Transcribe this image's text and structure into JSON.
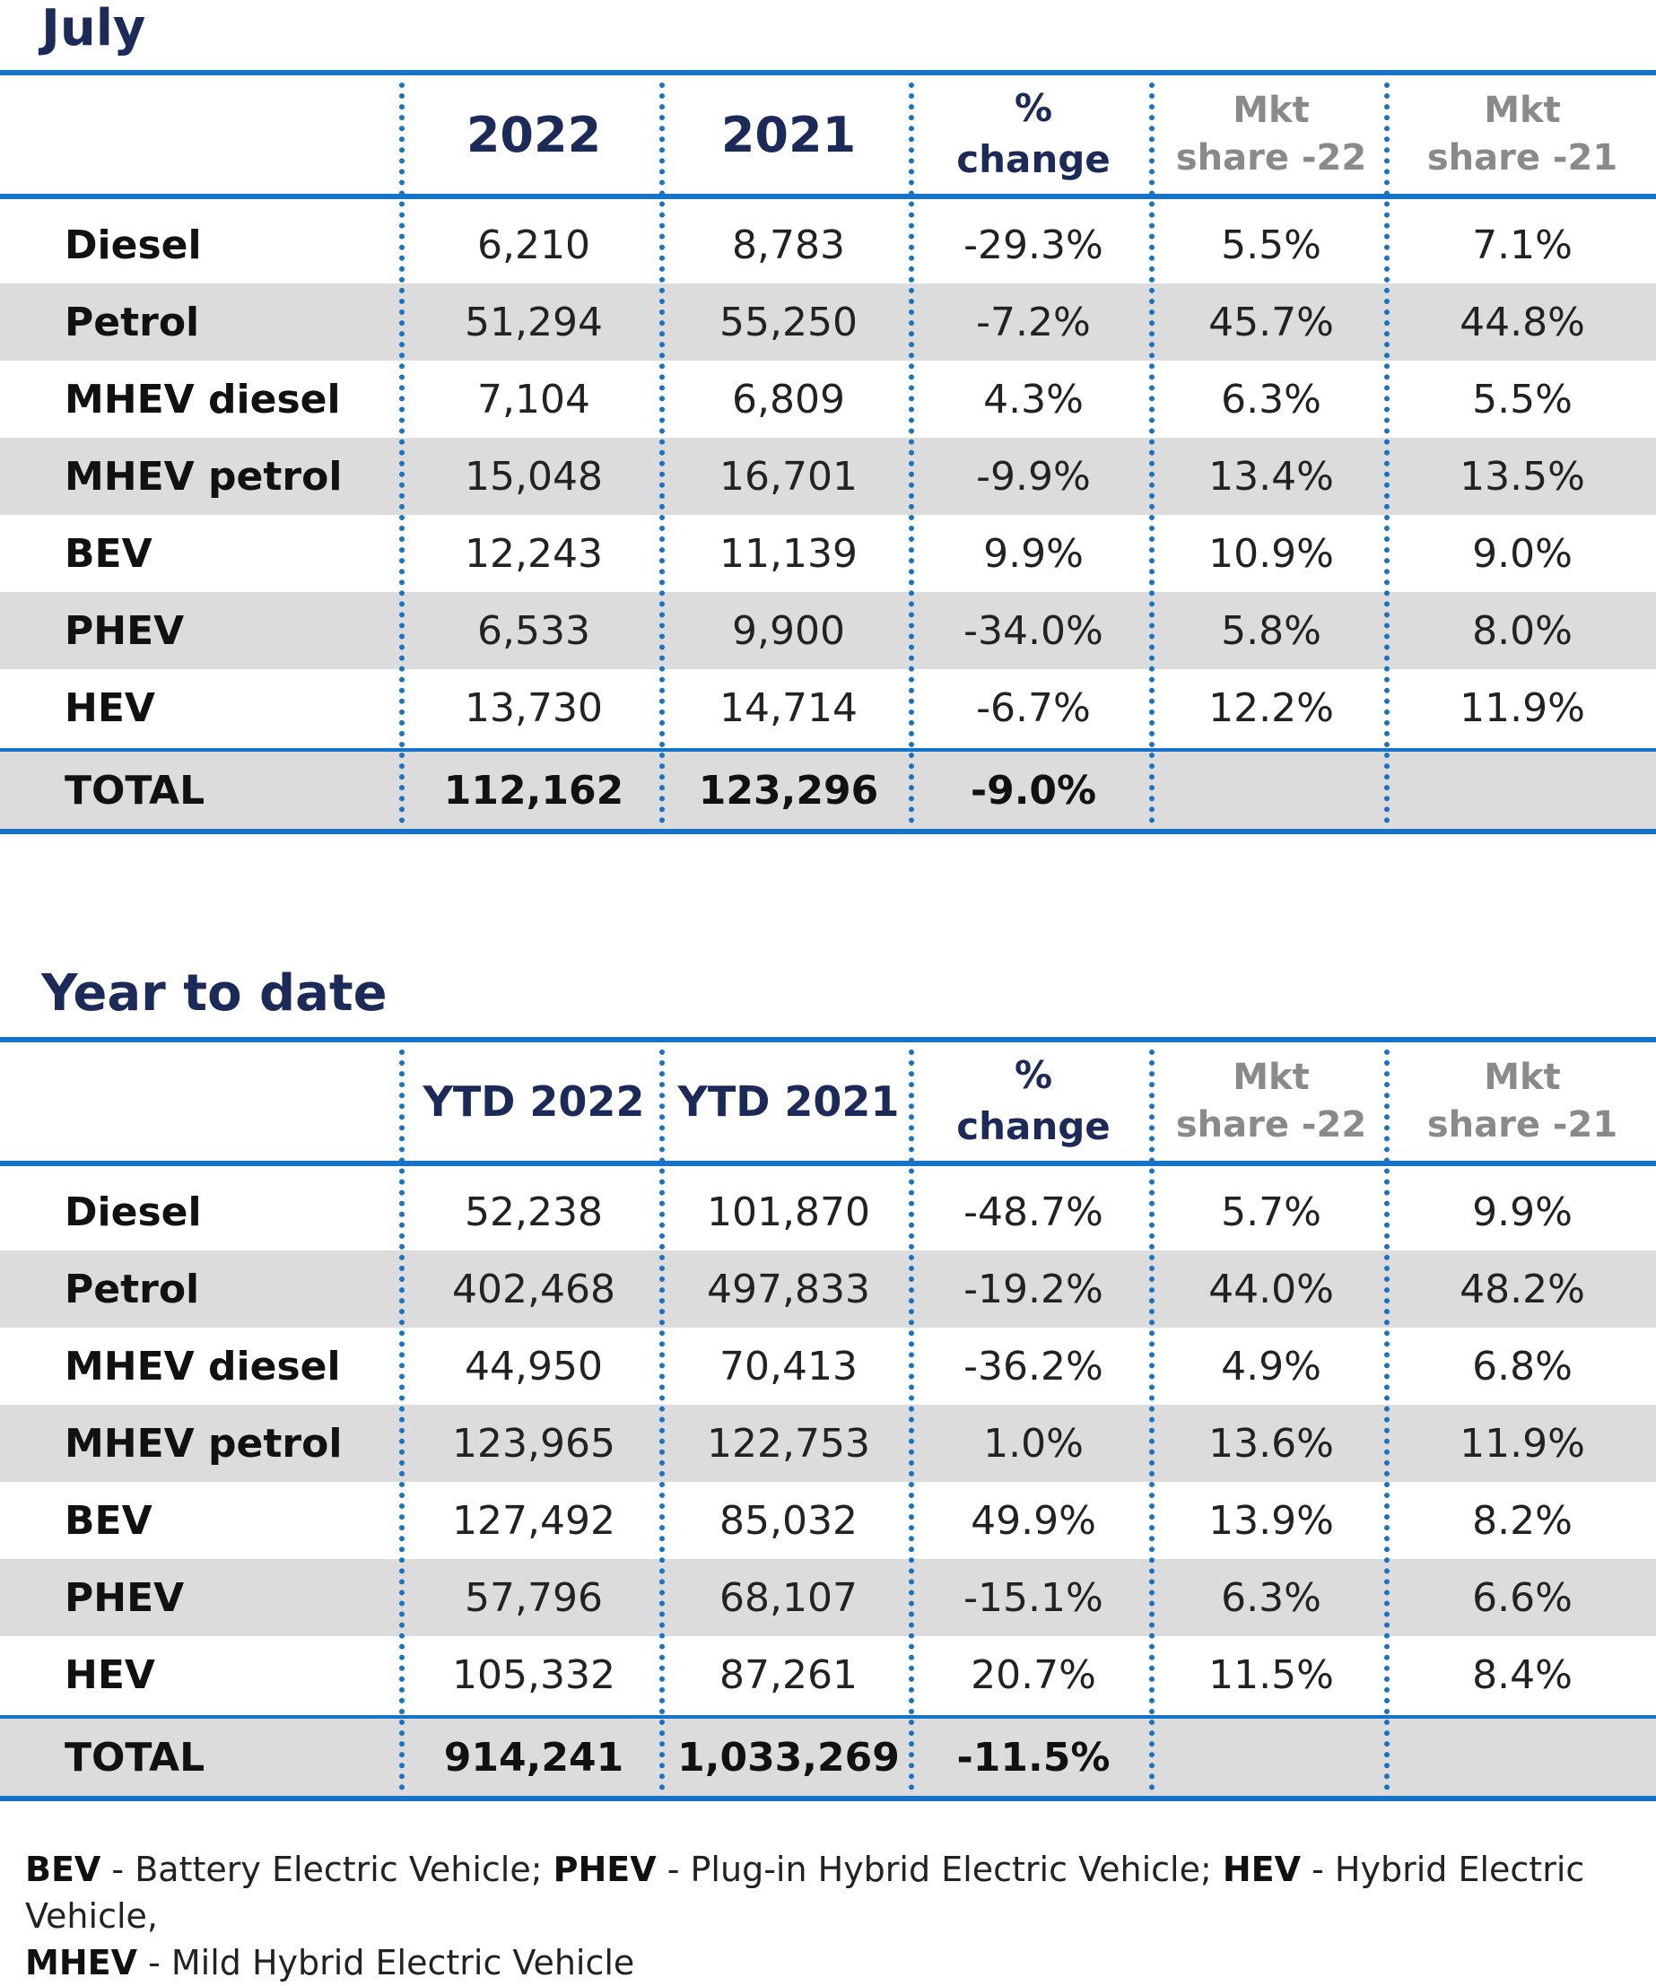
{
  "sections": [
    {
      "title": "July",
      "headers": {
        "c1": "2022",
        "c2": "2021",
        "change_1": "%",
        "change_2": "change",
        "mkt22_1": "Mkt",
        "mkt22_2": "share -22",
        "mkt21_1": "Mkt",
        "mkt21_2": "share -21"
      },
      "rows": [
        {
          "label": "Diesel",
          "v2022": "6,210",
          "v2021": "8,783",
          "change": "-29.3%",
          "mkt22": "5.5%",
          "mkt21": "7.1%"
        },
        {
          "label": "Petrol",
          "v2022": "51,294",
          "v2021": "55,250",
          "change": "-7.2%",
          "mkt22": "45.7%",
          "mkt21": "44.8%"
        },
        {
          "label": "MHEV diesel",
          "v2022": "7,104",
          "v2021": "6,809",
          "change": "4.3%",
          "mkt22": "6.3%",
          "mkt21": "5.5%"
        },
        {
          "label": "MHEV petrol",
          "v2022": "15,048",
          "v2021": "16,701",
          "change": "-9.9%",
          "mkt22": "13.4%",
          "mkt21": "13.5%"
        },
        {
          "label": "BEV",
          "v2022": "12,243",
          "v2021": "11,139",
          "change": "9.9%",
          "mkt22": "10.9%",
          "mkt21": "9.0%"
        },
        {
          "label": "PHEV",
          "v2022": "6,533",
          "v2021": "9,900",
          "change": "-34.0%",
          "mkt22": "5.8%",
          "mkt21": "8.0%"
        },
        {
          "label": "HEV",
          "v2022": "13,730",
          "v2021": "14,714",
          "change": "-6.7%",
          "mkt22": "12.2%",
          "mkt21": "11.9%"
        }
      ],
      "total": {
        "label": "TOTAL",
        "v2022": "112,162",
        "v2021": "123,296",
        "change": "-9.0%"
      }
    },
    {
      "title": "Year to date",
      "headers": {
        "c1": "YTD 2022",
        "c2": "YTD 2021",
        "change_1": "%",
        "change_2": "change",
        "mkt22_1": "Mkt",
        "mkt22_2": "share -22",
        "mkt21_1": "Mkt",
        "mkt21_2": "share -21"
      },
      "rows": [
        {
          "label": "Diesel",
          "v2022": "52,238",
          "v2021": "101,870",
          "change": "-48.7%",
          "mkt22": "5.7%",
          "mkt21": "9.9%"
        },
        {
          "label": "Petrol",
          "v2022": "402,468",
          "v2021": "497,833",
          "change": "-19.2%",
          "mkt22": "44.0%",
          "mkt21": "48.2%"
        },
        {
          "label": "MHEV diesel",
          "v2022": "44,950",
          "v2021": "70,413",
          "change": "-36.2%",
          "mkt22": "4.9%",
          "mkt21": "6.8%"
        },
        {
          "label": "MHEV petrol",
          "v2022": "123,965",
          "v2021": "122,753",
          "change": "1.0%",
          "mkt22": "13.6%",
          "mkt21": "11.9%"
        },
        {
          "label": "BEV",
          "v2022": "127,492",
          "v2021": "85,032",
          "change": "49.9%",
          "mkt22": "13.9%",
          "mkt21": "8.2%"
        },
        {
          "label": "PHEV",
          "v2022": "57,796",
          "v2021": "68,107",
          "change": "-15.1%",
          "mkt22": "6.3%",
          "mkt21": "6.6%"
        },
        {
          "label": "HEV",
          "v2022": "105,332",
          "v2021": "87,261",
          "change": "20.7%",
          "mkt22": "11.5%",
          "mkt21": "8.4%"
        }
      ],
      "total": {
        "label": "TOTAL",
        "v2022": "914,241",
        "v2021": "1,033,269",
        "change": "-11.5%"
      }
    }
  ],
  "legend": {
    "bev_abbr": "BEV",
    "bev_text": " - Battery Electric Vehicle; ",
    "phev_abbr": "PHEV",
    "phev_text": " - Plug-in Hybrid Electric Vehicle; ",
    "hev_abbr": "HEV",
    "hev_text": " - Hybrid Electric Vehicle,",
    "mhev_abbr": "MHEV",
    "mhev_text": " - Mild Hybrid Electric Vehicle"
  },
  "colors": {
    "accent_blue": "#1673c8",
    "title_navy": "#1b2a59",
    "row_shade": "#dcdcdc",
    "mkt_gray": "#8a8a8a"
  }
}
